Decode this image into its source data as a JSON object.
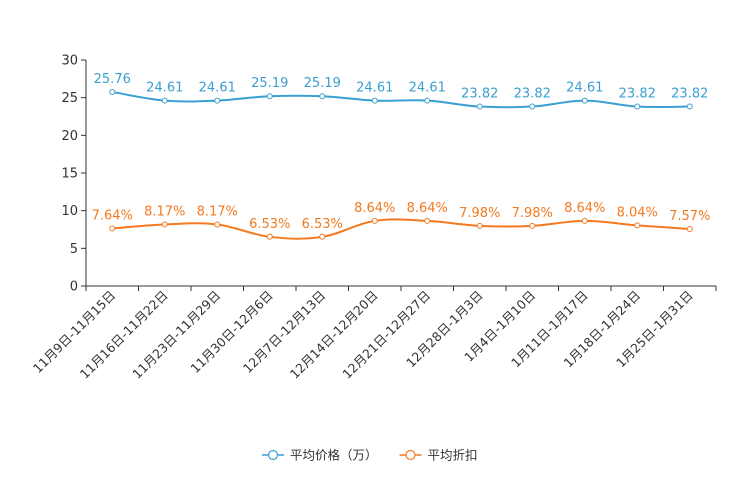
{
  "chart_data": {
    "type": "line",
    "categories": [
      "11月9日-11月15日",
      "11月16日-11月22日",
      "11月23日-11月29日",
      "11月30日-12月6日",
      "12月7日-12月13日",
      "12月14日-12月20日",
      "12月21日-12月27日",
      "12月28日-1月3日",
      "1月4日-1月10日",
      "1月11日-1月17日",
      "1月18日-1月24日",
      "1月25日-1月31日"
    ],
    "series": [
      {
        "name": "平均价格（万）",
        "color": "#3a9fd2",
        "values": [
          25.76,
          24.61,
          24.61,
          25.19,
          25.19,
          24.61,
          24.61,
          23.82,
          23.82,
          24.61,
          23.82,
          23.82
        ],
        "labels": [
          "25.76",
          "24.61",
          "24.61",
          "25.19",
          "25.19",
          "24.61",
          "24.61",
          "23.82",
          "23.82",
          "24.61",
          "23.82",
          "23.82"
        ]
      },
      {
        "name": "平均折扣",
        "color": "#f47a20",
        "values": [
          7.64,
          8.17,
          8.17,
          6.53,
          6.53,
          8.64,
          8.64,
          7.98,
          7.98,
          8.64,
          8.04,
          7.57
        ],
        "labels": [
          "7.64%",
          "8.17%",
          "8.17%",
          "6.53%",
          "6.53%",
          "8.64%",
          "8.64%",
          "7.98%",
          "7.98%",
          "8.64%",
          "8.04%",
          "7.57%"
        ]
      }
    ],
    "ylim": [
      0,
      30
    ],
    "yticks": [
      "0",
      "5",
      "10",
      "15",
      "20",
      "25",
      "30"
    ],
    "legend_position": "bottom-center",
    "title": "",
    "xlabel": "",
    "ylabel": ""
  }
}
